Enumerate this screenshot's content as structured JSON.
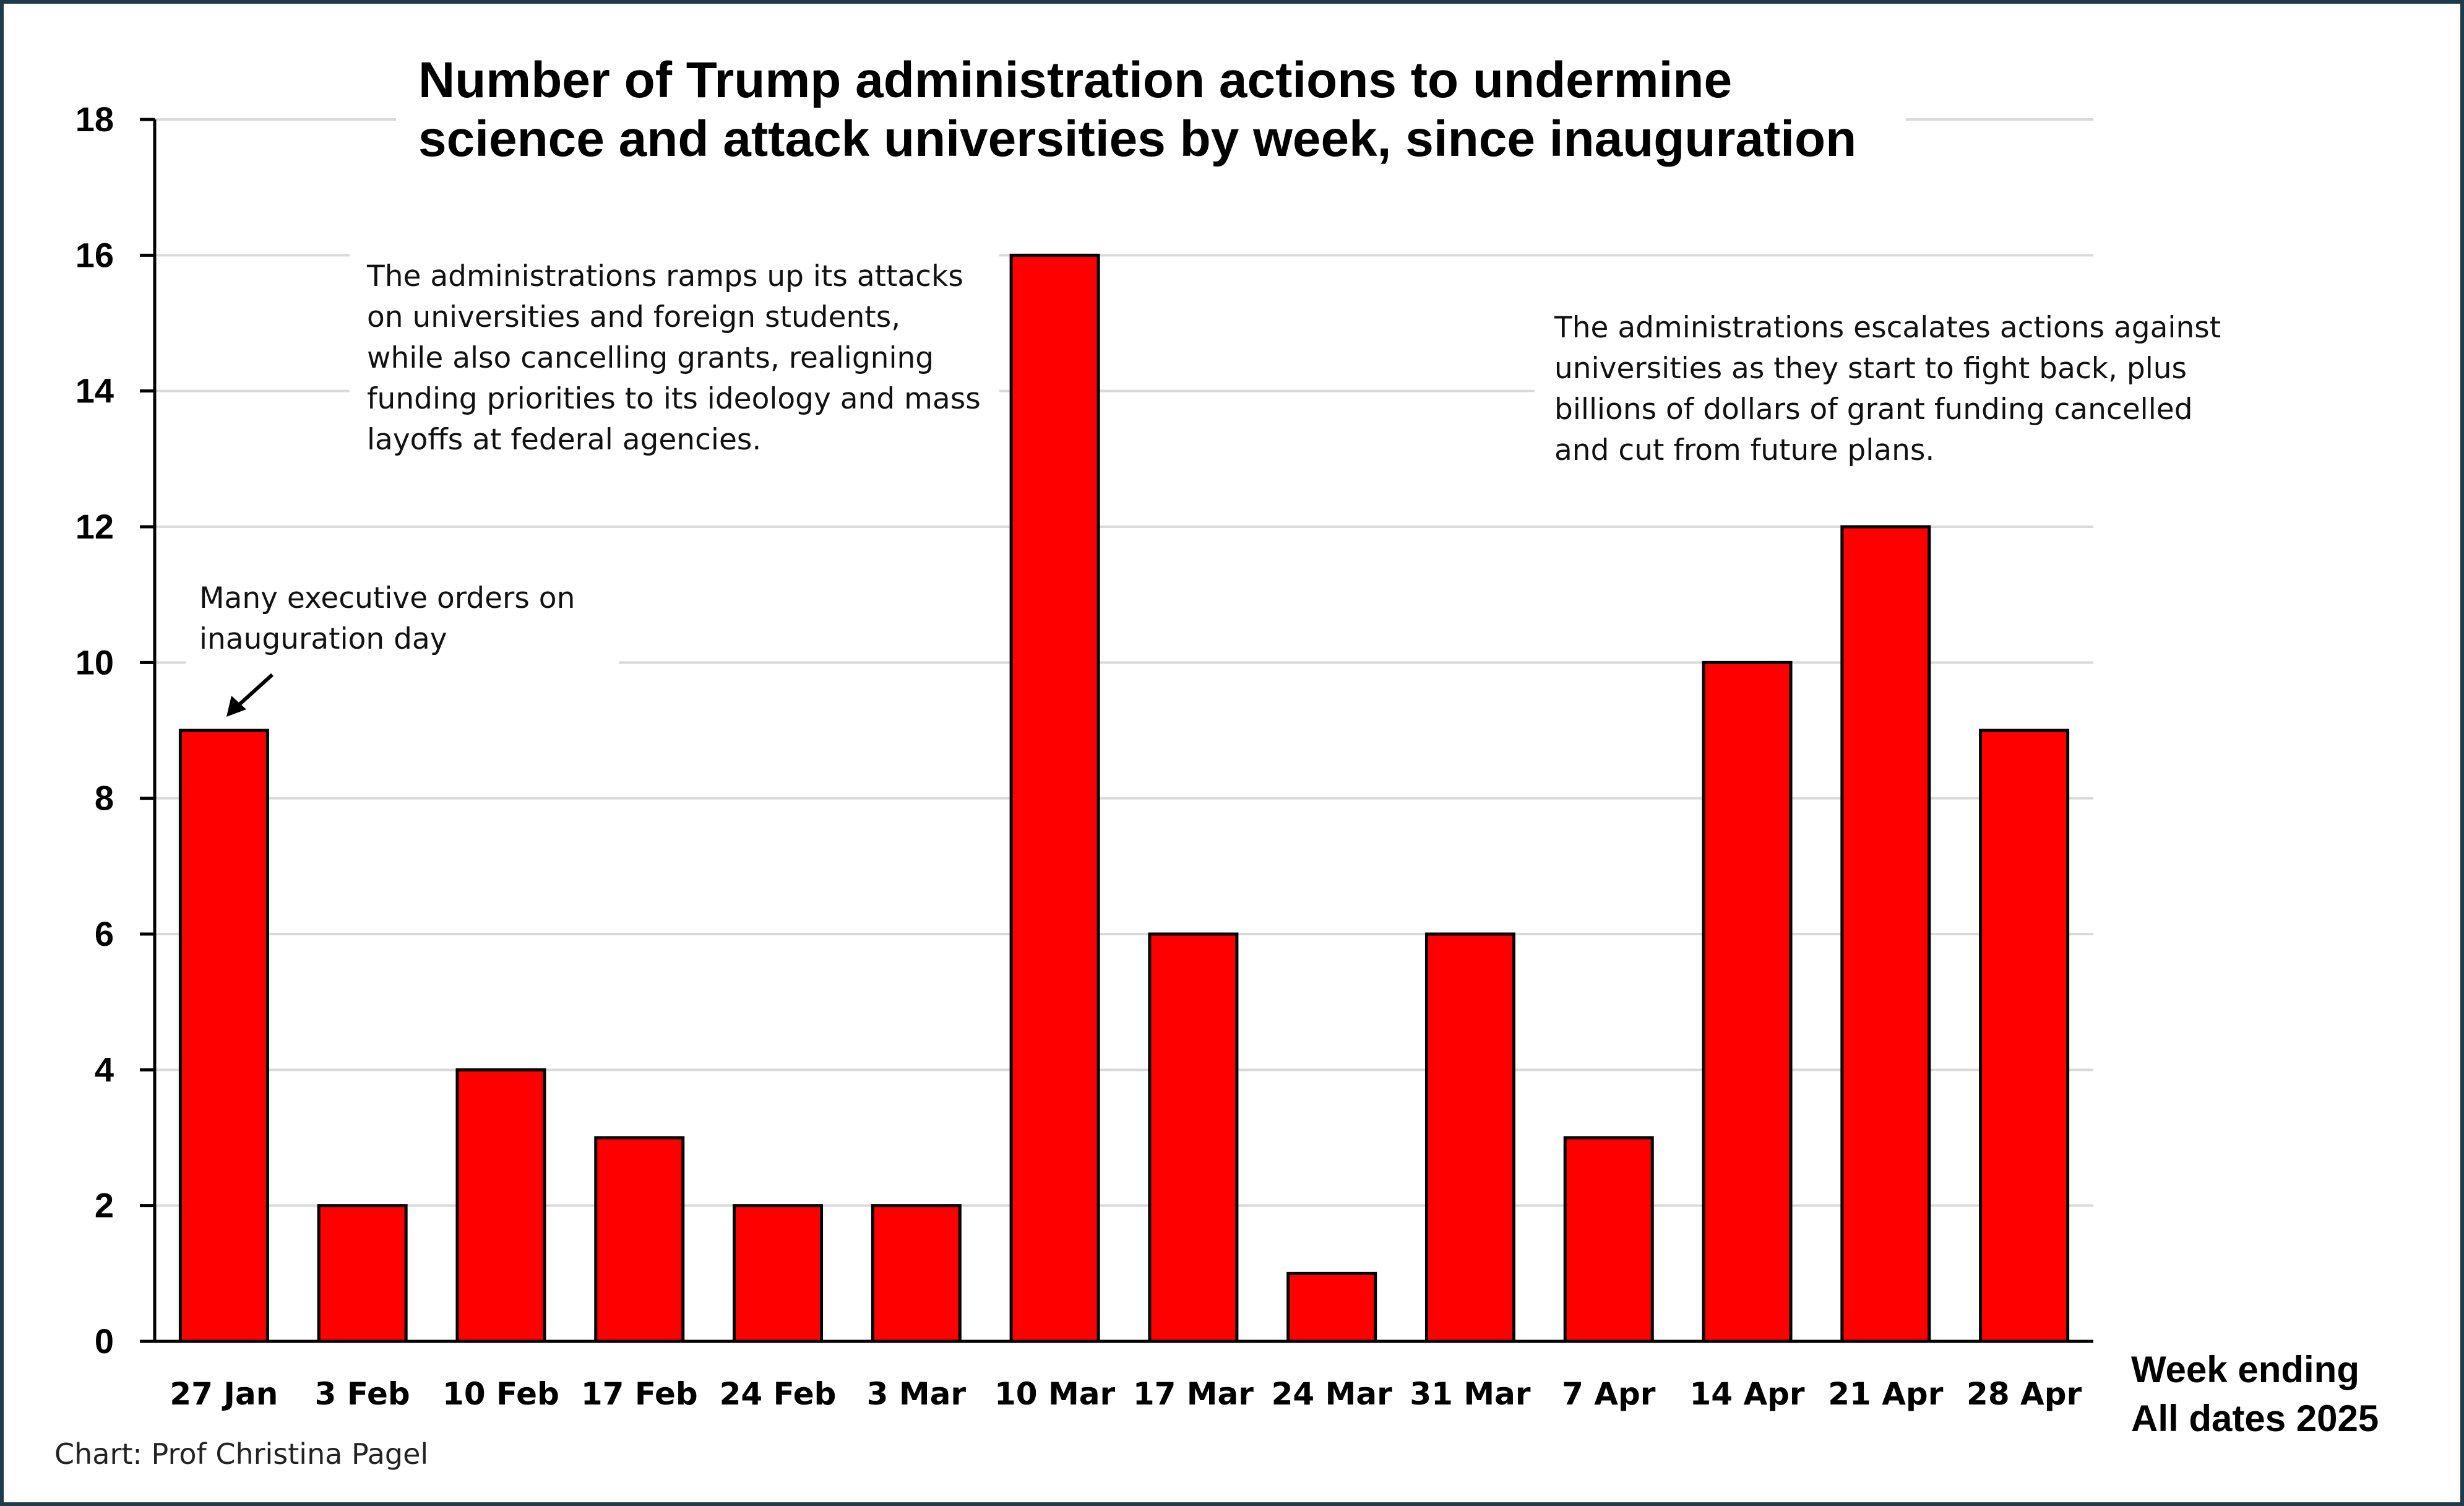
{
  "chart_data": {
    "type": "bar",
    "title": [
      "Number of Trump administration actions to undermine",
      "science and attack universities by week, since inauguration"
    ],
    "xlabel": [
      "Week ending",
      "All dates 2025"
    ],
    "ylabel": "",
    "ylim": [
      0,
      18
    ],
    "yticks": [
      0,
      2,
      4,
      6,
      8,
      10,
      12,
      14,
      16,
      18
    ],
    "grid": true,
    "categories": [
      "27 Jan",
      "3 Feb",
      "10 Feb",
      "17 Feb",
      "24 Feb",
      "3 Mar",
      "10 Mar",
      "17 Mar",
      "24 Mar",
      "31 Mar",
      "7 Apr",
      "14 Apr",
      "21 Apr",
      "28 Apr"
    ],
    "values": [
      9,
      2,
      4,
      3,
      2,
      2,
      16,
      6,
      1,
      6,
      3,
      10,
      12,
      9
    ],
    "bar_color": "#ff0000",
    "annotations": [
      {
        "lines": [
          "Many executive orders on",
          "inauguration day"
        ],
        "points_to": "27 Jan"
      },
      {
        "lines": [
          "The administrations ramps up its attacks",
          "on universities and foreign students,",
          "while also cancelling grants, realigning",
          "funding priorities to its ideology and mass",
          "layoffs at federal agencies."
        ]
      },
      {
        "lines": [
          "The administrations escalates actions against",
          "universities as they start to fight back, plus",
          "billions of dollars of grant funding cancelled",
          "and cut from future plans."
        ]
      }
    ]
  },
  "credit": "Chart: Prof Christina Pagel"
}
